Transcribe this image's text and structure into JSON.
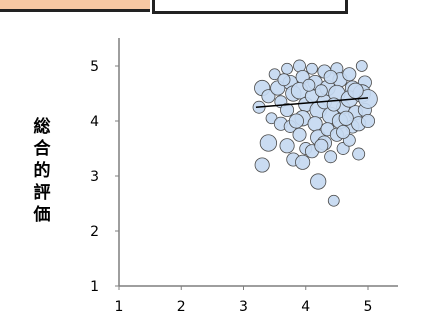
{
  "chart_data": {
    "type": "scatter",
    "title": "",
    "xlabel": "",
    "ylabel": "総合的評価",
    "xlim": [
      1,
      5
    ],
    "ylim": [
      1,
      5
    ],
    "x_ticks": [
      "1",
      "2",
      "3",
      "4",
      "5"
    ],
    "y_ticks": [
      "1",
      "2",
      "3",
      "4",
      "5"
    ],
    "grid": false,
    "legend": "none",
    "colors": {
      "bubble_fill": "#c5d9f1",
      "bubble_stroke": "#4a4a4a",
      "trend": "#000000",
      "axis": "#7f7f7f"
    },
    "trendline": {
      "x": [
        3.2,
        5.0
      ],
      "y": [
        4.25,
        4.42
      ]
    },
    "points": [
      {
        "x": 3.3,
        "y": 4.6,
        "size": 1.4
      },
      {
        "x": 3.4,
        "y": 4.45,
        "size": 1.2
      },
      {
        "x": 3.25,
        "y": 4.25,
        "size": 1.1
      },
      {
        "x": 3.5,
        "y": 4.85,
        "size": 1.0
      },
      {
        "x": 3.55,
        "y": 4.6,
        "size": 1.3
      },
      {
        "x": 3.6,
        "y": 4.35,
        "size": 1.1
      },
      {
        "x": 3.45,
        "y": 4.05,
        "size": 1.0
      },
      {
        "x": 3.4,
        "y": 3.6,
        "size": 1.5
      },
      {
        "x": 3.3,
        "y": 3.2,
        "size": 1.3
      },
      {
        "x": 3.6,
        "y": 3.95,
        "size": 1.2
      },
      {
        "x": 3.7,
        "y": 4.95,
        "size": 1.0
      },
      {
        "x": 3.75,
        "y": 4.7,
        "size": 1.3
      },
      {
        "x": 3.8,
        "y": 4.5,
        "size": 1.4
      },
      {
        "x": 3.7,
        "y": 4.2,
        "size": 1.2
      },
      {
        "x": 3.75,
        "y": 3.9,
        "size": 1.1
      },
      {
        "x": 3.7,
        "y": 3.55,
        "size": 1.3
      },
      {
        "x": 3.8,
        "y": 3.3,
        "size": 1.2
      },
      {
        "x": 3.9,
        "y": 5.0,
        "size": 1.1
      },
      {
        "x": 3.95,
        "y": 4.8,
        "size": 1.2
      },
      {
        "x": 3.9,
        "y": 4.55,
        "size": 1.5
      },
      {
        "x": 4.0,
        "y": 4.3,
        "size": 1.3
      },
      {
        "x": 3.95,
        "y": 4.05,
        "size": 1.4
      },
      {
        "x": 3.9,
        "y": 3.75,
        "size": 1.2
      },
      {
        "x": 4.0,
        "y": 3.5,
        "size": 1.1
      },
      {
        "x": 3.95,
        "y": 3.25,
        "size": 1.3
      },
      {
        "x": 4.1,
        "y": 4.95,
        "size": 1.0
      },
      {
        "x": 4.15,
        "y": 4.7,
        "size": 1.3
      },
      {
        "x": 4.1,
        "y": 4.45,
        "size": 1.2
      },
      {
        "x": 4.2,
        "y": 4.2,
        "size": 1.5
      },
      {
        "x": 4.15,
        "y": 3.95,
        "size": 1.3
      },
      {
        "x": 4.2,
        "y": 3.7,
        "size": 1.4
      },
      {
        "x": 4.1,
        "y": 3.45,
        "size": 1.2
      },
      {
        "x": 4.2,
        "y": 2.9,
        "size": 1.4
      },
      {
        "x": 4.3,
        "y": 4.9,
        "size": 1.2
      },
      {
        "x": 4.35,
        "y": 4.6,
        "size": 1.4
      },
      {
        "x": 4.3,
        "y": 4.35,
        "size": 1.3
      },
      {
        "x": 4.4,
        "y": 4.1,
        "size": 1.5
      },
      {
        "x": 4.35,
        "y": 3.85,
        "size": 1.2
      },
      {
        "x": 4.3,
        "y": 3.6,
        "size": 1.3
      },
      {
        "x": 4.4,
        "y": 3.35,
        "size": 1.1
      },
      {
        "x": 4.45,
        "y": 2.55,
        "size": 1.0
      },
      {
        "x": 4.5,
        "y": 4.95,
        "size": 1.1
      },
      {
        "x": 4.55,
        "y": 4.75,
        "size": 1.3
      },
      {
        "x": 4.5,
        "y": 4.5,
        "size": 1.5
      },
      {
        "x": 4.6,
        "y": 4.25,
        "size": 1.2
      },
      {
        "x": 4.55,
        "y": 4.0,
        "size": 1.4
      },
      {
        "x": 4.5,
        "y": 3.75,
        "size": 1.2
      },
      {
        "x": 4.6,
        "y": 3.5,
        "size": 1.1
      },
      {
        "x": 4.7,
        "y": 4.85,
        "size": 1.2
      },
      {
        "x": 4.75,
        "y": 4.6,
        "size": 1.3
      },
      {
        "x": 4.7,
        "y": 4.4,
        "size": 1.5
      },
      {
        "x": 4.8,
        "y": 4.15,
        "size": 1.3
      },
      {
        "x": 4.75,
        "y": 3.9,
        "size": 1.2
      },
      {
        "x": 4.7,
        "y": 3.65,
        "size": 1.1
      },
      {
        "x": 4.85,
        "y": 3.4,
        "size": 1.1
      },
      {
        "x": 4.9,
        "y": 5.0,
        "size": 1.0
      },
      {
        "x": 4.95,
        "y": 4.7,
        "size": 1.2
      },
      {
        "x": 4.9,
        "y": 4.5,
        "size": 1.6
      },
      {
        "x": 4.95,
        "y": 4.2,
        "size": 1.2
      },
      {
        "x": 4.85,
        "y": 3.95,
        "size": 1.3
      },
      {
        "x": 5.0,
        "y": 4.4,
        "size": 1.7
      },
      {
        "x": 5.0,
        "y": 4.0,
        "size": 1.2
      },
      {
        "x": 4.25,
        "y": 4.55,
        "size": 1.1
      },
      {
        "x": 4.45,
        "y": 4.3,
        "size": 1.2
      },
      {
        "x": 4.65,
        "y": 4.05,
        "size": 1.3
      },
      {
        "x": 4.05,
        "y": 4.65,
        "size": 1.1
      },
      {
        "x": 3.85,
        "y": 4.0,
        "size": 1.3
      },
      {
        "x": 4.25,
        "y": 3.55,
        "size": 1.2
      },
      {
        "x": 4.6,
        "y": 3.8,
        "size": 1.2
      },
      {
        "x": 3.65,
        "y": 4.75,
        "size": 1.1
      },
      {
        "x": 4.8,
        "y": 4.55,
        "size": 1.4
      },
      {
        "x": 4.4,
        "y": 4.8,
        "size": 1.2
      }
    ]
  }
}
